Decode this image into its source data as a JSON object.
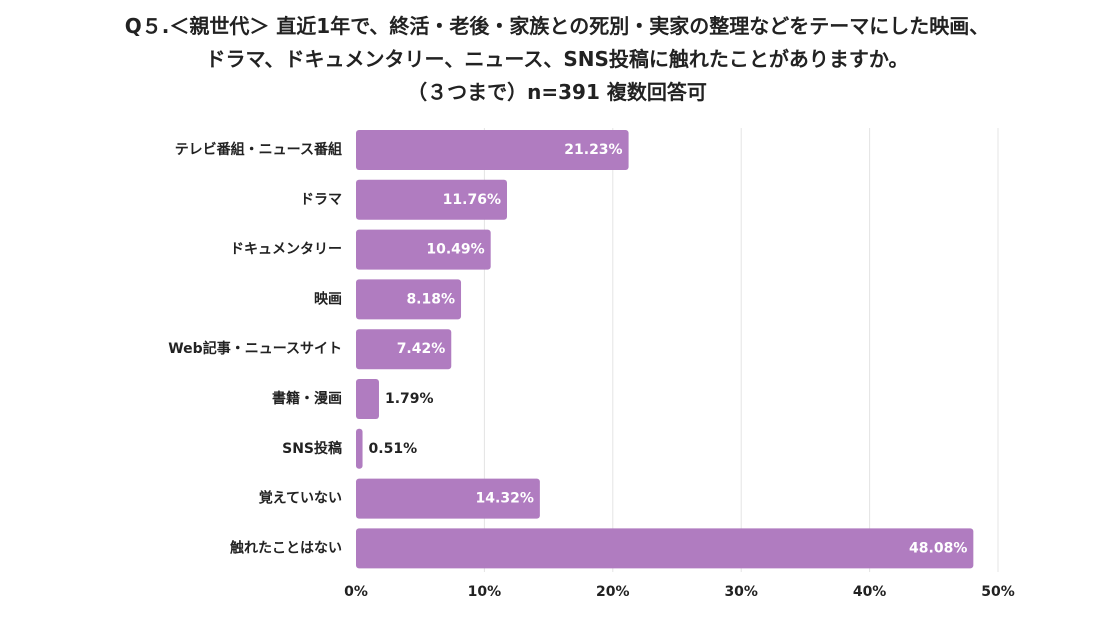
{
  "title": {
    "line1": "Q５.＜親世代＞ 直近1年で、終活・老後・家族との死別・実家の整理などをテーマにした映画、",
    "line2": "ドラマ、ドキュメンタリー、ニュース、SNS投稿に触れたことがありますか。",
    "line3": "（３つまで）n=391 複数回答可"
  },
  "chart_data": {
    "type": "bar",
    "orientation": "horizontal",
    "categories": [
      "テレビ番組・ニュース番組",
      "ドラマ",
      "ドキュメンタリー",
      "映画",
      "Web記事・ニュースサイト",
      "書籍・漫画",
      "SNS投稿",
      "覚えていない",
      "触れたことはない"
    ],
    "values": [
      21.23,
      11.76,
      10.49,
      8.18,
      7.42,
      1.79,
      0.51,
      14.32,
      48.08
    ],
    "value_labels": [
      "21.23%",
      "11.76%",
      "10.49%",
      "8.18%",
      "7.42%",
      "1.79%",
      "0.51%",
      "14.32%",
      "48.08%"
    ],
    "xlim": [
      0,
      50
    ],
    "ticks": [
      0,
      10,
      20,
      30,
      40,
      50
    ],
    "tick_labels": [
      "0%",
      "10%",
      "20%",
      "30%",
      "40%",
      "50%"
    ],
    "grid": true,
    "bar_color": "#b07cc0",
    "grid_color": "#e4e4e4",
    "label_inside_color": "#ffffff",
    "label_outside_color": "#222222"
  }
}
